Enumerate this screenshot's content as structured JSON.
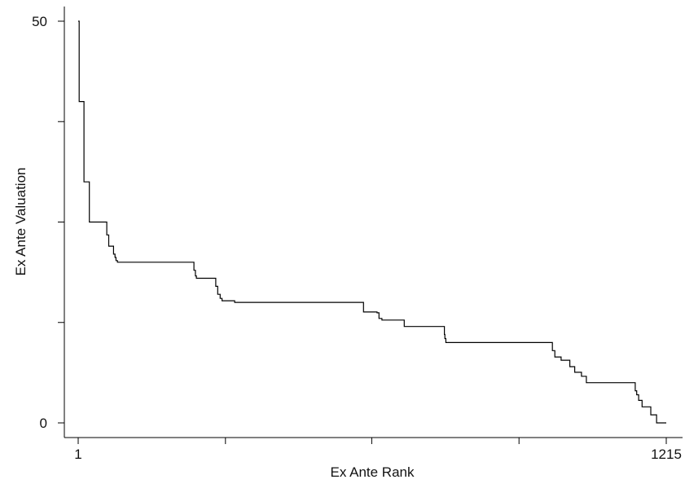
{
  "chart_data": {
    "type": "line",
    "title": "",
    "xlabel": "Ex Ante Rank",
    "ylabel": "Ex Ante Valuation",
    "xlim": [
      1,
      1215
    ],
    "ylim": [
      0,
      50
    ],
    "x_tick_labels": [
      "1",
      "1215"
    ],
    "y_tick_labels": [
      "0",
      "50"
    ],
    "x_ticks_unlabeled": [
      305,
      607,
      911
    ],
    "y_ticks_unlabeled": [
      12.5,
      25,
      37.5
    ],
    "grid": false,
    "legend": "none",
    "line_color": "#000000",
    "series": [
      {
        "step": true,
        "x": [
          1,
          3,
          13,
          24,
          60,
          64,
          74,
          77,
          79,
          82,
          86,
          240,
          243,
          245,
          285,
          289,
          294,
          298,
          324,
          588,
          590,
          618,
          622,
          628,
          674,
          757,
          758,
          760,
          976,
          980,
          985,
          998,
          1016,
          1026,
          1040,
          1050,
          1148,
          1151,
          1154,
          1158,
          1165,
          1183,
          1195,
          1208,
          1215
        ],
        "y": [
          50.0,
          40.0,
          30.0,
          25.0,
          23.4,
          22.0,
          21.0,
          20.6,
          20.2,
          20.0,
          20.0,
          19.0,
          18.3,
          18.0,
          17.0,
          16.0,
          15.5,
          15.2,
          15.0,
          15.0,
          13.8,
          13.7,
          13.0,
          12.8,
          12.0,
          11.0,
          10.5,
          10.0,
          10.0,
          9.0,
          8.2,
          7.8,
          7.0,
          6.3,
          5.8,
          5.0,
          5.0,
          4.0,
          3.5,
          2.8,
          2.0,
          1.0,
          0.0,
          0.0,
          0.0
        ]
      }
    ]
  }
}
